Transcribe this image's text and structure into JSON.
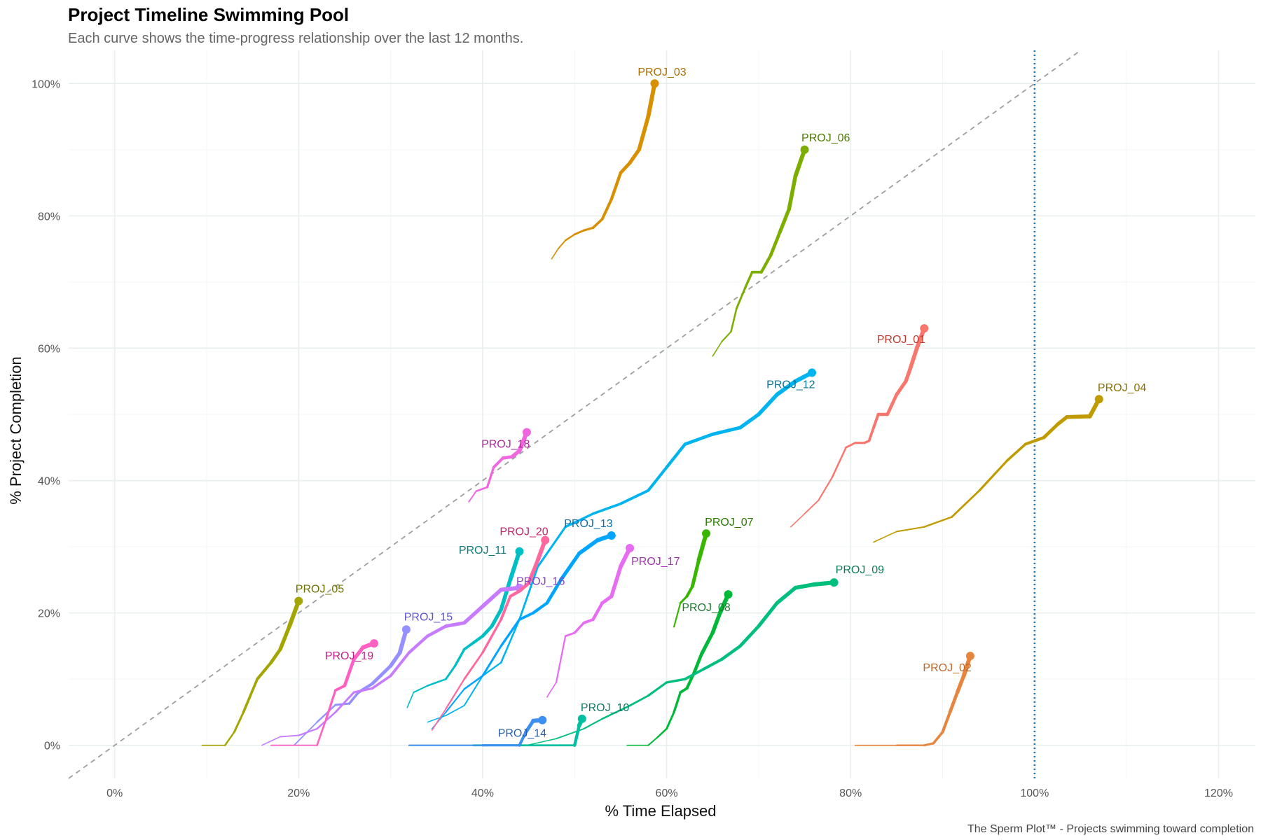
{
  "chart_data": {
    "type": "line",
    "title": "Project Timeline Swimming Pool",
    "subtitle": "Each curve shows the time-progress relationship over the last 12 months.",
    "caption": "The Sperm Plot™ - Projects swimming toward completion",
    "xlabel": "% Time Elapsed",
    "ylabel": "% Project Completion",
    "xlim": [
      -5,
      124
    ],
    "ylim": [
      -5,
      105
    ],
    "xticks": [
      0,
      20,
      40,
      60,
      80,
      100,
      120
    ],
    "xtick_labels": [
      "0%",
      "20%",
      "40%",
      "60%",
      "80%",
      "100%",
      "120%"
    ],
    "yticks": [
      0,
      20,
      40,
      60,
      80,
      100
    ],
    "ytick_labels": [
      "0%",
      "20%",
      "40%",
      "60%",
      "80%",
      "100%"
    ],
    "grid": true,
    "reference_line": {
      "type": "diagonal",
      "style": "dashed",
      "color": "#9e9e9e"
    },
    "deadline_line": {
      "x": 100,
      "style": "dotted",
      "color": "#1f77b4"
    },
    "series": [
      {
        "name": "PROJ_01",
        "color": "#F8766D",
        "label_color": "#C0392B",
        "points": [
          [
            73.5,
            33
          ],
          [
            75,
            35
          ],
          [
            76.5,
            37
          ],
          [
            78,
            40.5
          ],
          [
            79.5,
            45
          ],
          [
            80.5,
            45.7
          ],
          [
            81.5,
            45.7
          ],
          [
            82,
            46
          ],
          [
            82.5,
            48
          ],
          [
            83,
            50
          ],
          [
            84,
            50
          ],
          [
            85,
            53
          ],
          [
            86,
            55
          ],
          [
            86.5,
            57
          ],
          [
            87.2,
            60
          ],
          [
            88,
            63
          ]
        ]
      },
      {
        "name": "PROJ_02",
        "color": "#E7853E",
        "label_color": "#C0672A",
        "points": [
          [
            80.5,
            0
          ],
          [
            85,
            0
          ],
          [
            88,
            0
          ],
          [
            89,
            0.3
          ],
          [
            90,
            2
          ],
          [
            90.8,
            5
          ],
          [
            91.6,
            8
          ],
          [
            92.3,
            10.5
          ],
          [
            93,
            13.5
          ]
        ]
      },
      {
        "name": "PROJ_03",
        "color": "#D89000",
        "label_color": "#A86E00",
        "points": [
          [
            47.5,
            73.5
          ],
          [
            48.2,
            75
          ],
          [
            49,
            76.3
          ],
          [
            50,
            77.2
          ],
          [
            51,
            77.8
          ],
          [
            52,
            78.2
          ],
          [
            53,
            79.5
          ],
          [
            54,
            82.5
          ],
          [
            55,
            86.5
          ],
          [
            56,
            88
          ],
          [
            57,
            90
          ],
          [
            58,
            95
          ],
          [
            58.7,
            100
          ]
        ]
      },
      {
        "name": "PROJ_04",
        "color": "#C09B00",
        "label_color": "#8A6F00",
        "points": [
          [
            82.5,
            30.7
          ],
          [
            85,
            32.3
          ],
          [
            88,
            33
          ],
          [
            91,
            34.5
          ],
          [
            94,
            38.5
          ],
          [
            97,
            43
          ],
          [
            99,
            45.5
          ],
          [
            100,
            46
          ],
          [
            101,
            46.5
          ],
          [
            102.5,
            48.5
          ],
          [
            103.5,
            49.6
          ],
          [
            106,
            49.7
          ],
          [
            107,
            52.3
          ]
        ]
      },
      {
        "name": "PROJ_05",
        "color": "#A3A500",
        "label_color": "#6E7000",
        "points": [
          [
            9.5,
            0
          ],
          [
            12,
            0
          ],
          [
            13,
            2
          ],
          [
            14,
            5
          ],
          [
            15.5,
            10
          ],
          [
            17,
            12.5
          ],
          [
            18,
            14.5
          ],
          [
            19,
            18
          ],
          [
            20,
            21.8
          ]
        ]
      },
      {
        "name": "PROJ_06",
        "color": "#7CAE00",
        "label_color": "#4F7A00",
        "points": [
          [
            65,
            58.8
          ],
          [
            66,
            61
          ],
          [
            67,
            62.5
          ],
          [
            67.6,
            66
          ],
          [
            68.5,
            69
          ],
          [
            69.3,
            71.5
          ],
          [
            70.3,
            71.5
          ],
          [
            71.3,
            74
          ],
          [
            72.3,
            77.5
          ],
          [
            73.3,
            81
          ],
          [
            74,
            86
          ],
          [
            75,
            90
          ]
        ]
      },
      {
        "name": "PROJ_07",
        "color": "#39B600",
        "label_color": "#2A7A00",
        "points": [
          [
            60.8,
            17.9
          ],
          [
            61.5,
            21.5
          ],
          [
            62.2,
            22.5
          ],
          [
            62.8,
            24
          ],
          [
            63.5,
            28
          ],
          [
            64.3,
            32
          ]
        ]
      },
      {
        "name": "PROJ_08",
        "color": "#00B938",
        "label_color": "#1E7A30",
        "points": [
          [
            55.7,
            0
          ],
          [
            58,
            0
          ],
          [
            59,
            1.2
          ],
          [
            60,
            2.5
          ],
          [
            60.8,
            5
          ],
          [
            61.5,
            8
          ],
          [
            62.2,
            8.6
          ],
          [
            63,
            11
          ],
          [
            63.8,
            13.8
          ],
          [
            65,
            17
          ],
          [
            65.8,
            20
          ],
          [
            66.7,
            22.8
          ]
        ]
      },
      {
        "name": "PROJ_09",
        "color": "#00BF7D",
        "label_color": "#0F7A56",
        "points": [
          [
            44.8,
            0
          ],
          [
            48,
            1
          ],
          [
            51,
            2.5
          ],
          [
            53,
            4
          ],
          [
            56,
            6
          ],
          [
            58,
            7.5
          ],
          [
            60,
            9.5
          ],
          [
            62,
            10
          ],
          [
            64,
            11.5
          ],
          [
            66,
            13
          ],
          [
            68,
            15
          ],
          [
            70,
            18
          ],
          [
            72,
            21.5
          ],
          [
            74,
            23.8
          ],
          [
            76,
            24.3
          ],
          [
            78.2,
            24.6
          ]
        ]
      },
      {
        "name": "PROJ_10",
        "color": "#00BFA0",
        "label_color": "#0E7A6A",
        "points": [
          [
            39,
            0
          ],
          [
            50,
            0
          ],
          [
            50.5,
            3
          ],
          [
            50.8,
            4
          ]
        ]
      },
      {
        "name": "PROJ_11",
        "color": "#00BFC4",
        "label_color": "#0E7A7D",
        "points": [
          [
            31.8,
            5.7
          ],
          [
            32.5,
            8
          ],
          [
            34,
            9
          ],
          [
            36,
            10
          ],
          [
            37,
            12
          ],
          [
            38,
            14.5
          ],
          [
            39,
            15.5
          ],
          [
            40,
            16.5
          ],
          [
            41,
            18
          ],
          [
            42,
            20.5
          ],
          [
            43,
            25
          ],
          [
            44,
            29.3
          ]
        ]
      },
      {
        "name": "PROJ_12",
        "color": "#00B4EF",
        "label_color": "#0B7396",
        "points": [
          [
            34,
            3.5
          ],
          [
            36,
            4.5
          ],
          [
            38,
            6
          ],
          [
            40,
            10.5
          ],
          [
            42,
            12.5
          ],
          [
            44,
            19
          ],
          [
            46,
            27
          ],
          [
            49,
            33
          ],
          [
            52,
            35
          ],
          [
            55,
            36.5
          ],
          [
            58,
            38.5
          ],
          [
            60,
            42
          ],
          [
            62,
            45.5
          ],
          [
            65,
            47
          ],
          [
            68,
            48
          ],
          [
            70,
            50
          ],
          [
            72,
            53
          ],
          [
            74,
            55
          ],
          [
            75.8,
            56.3
          ]
        ]
      },
      {
        "name": "PROJ_13",
        "color": "#00A5FF",
        "label_color": "#0B6EA8",
        "points": [
          [
            34.5,
            2.5
          ],
          [
            36,
            5
          ],
          [
            38,
            8.5
          ],
          [
            40,
            10.5
          ],
          [
            42,
            15
          ],
          [
            44,
            19
          ],
          [
            45.5,
            20
          ],
          [
            47,
            21.5
          ],
          [
            48.5,
            25
          ],
          [
            50.5,
            29
          ],
          [
            52.5,
            31
          ],
          [
            54,
            31.7
          ]
        ]
      },
      {
        "name": "PROJ_14",
        "color": "#3D8FF0",
        "label_color": "#2A5FA8",
        "points": [
          [
            32,
            0
          ],
          [
            40,
            0
          ],
          [
            44,
            0
          ],
          [
            44.7,
            2
          ],
          [
            45.5,
            3.7
          ],
          [
            46.5,
            3.8
          ]
        ]
      },
      {
        "name": "PROJ_15",
        "color": "#9590FF",
        "label_color": "#5C55C8",
        "points": [
          [
            19.5,
            0
          ],
          [
            22,
            3.5
          ],
          [
            24,
            6.1
          ],
          [
            25.5,
            6.3
          ],
          [
            26.5,
            8
          ],
          [
            28,
            9.3
          ],
          [
            30,
            12
          ],
          [
            31,
            14
          ],
          [
            31.7,
            17.5
          ]
        ]
      },
      {
        "name": "PROJ_16",
        "color": "#C77CFF",
        "label_color": "#8A3FC4",
        "points": [
          [
            16,
            0
          ],
          [
            18,
            1.3
          ],
          [
            20,
            1.5
          ],
          [
            22,
            2.5
          ],
          [
            24,
            5
          ],
          [
            26,
            8
          ],
          [
            28,
            8.6
          ],
          [
            30,
            10.5
          ],
          [
            32,
            14
          ],
          [
            34,
            16.5
          ],
          [
            36,
            18
          ],
          [
            38,
            18.5
          ],
          [
            40,
            21
          ],
          [
            42,
            23.5
          ],
          [
            44,
            23.8
          ]
        ]
      },
      {
        "name": "PROJ_17",
        "color": "#E76BF3",
        "label_color": "#A32FB3",
        "points": [
          [
            47,
            7.3
          ],
          [
            48,
            9.5
          ],
          [
            49,
            16.5
          ],
          [
            50,
            17
          ],
          [
            51,
            18.5
          ],
          [
            52,
            19
          ],
          [
            53,
            21.5
          ],
          [
            54,
            22.5
          ],
          [
            55,
            27
          ],
          [
            56,
            29.8
          ]
        ]
      },
      {
        "name": "PROJ_18",
        "color": "#F066E0",
        "label_color": "#B0259E",
        "points": [
          [
            38.5,
            36.8
          ],
          [
            39.3,
            38.4
          ],
          [
            40.5,
            39
          ],
          [
            41.2,
            42
          ],
          [
            42.2,
            43.4
          ],
          [
            43.2,
            43.6
          ],
          [
            44,
            44.5
          ],
          [
            44.8,
            47.3
          ]
        ]
      },
      {
        "name": "PROJ_19",
        "color": "#FF61C3",
        "label_color": "#C21F84",
        "points": [
          [
            17,
            0
          ],
          [
            22,
            0
          ],
          [
            23,
            4
          ],
          [
            24,
            8.3
          ],
          [
            25,
            9
          ],
          [
            26,
            13
          ],
          [
            27,
            14.8
          ],
          [
            28.2,
            15.4
          ]
        ]
      },
      {
        "name": "PROJ_20",
        "color": "#FF689F",
        "label_color": "#C4256A",
        "points": [
          [
            34.5,
            2.3
          ],
          [
            36,
            5.5
          ],
          [
            38,
            10
          ],
          [
            40,
            14
          ],
          [
            42,
            19
          ],
          [
            43,
            22.5
          ],
          [
            44,
            23.3
          ],
          [
            45,
            24.5
          ],
          [
            46,
            28
          ],
          [
            46.8,
            31
          ]
        ]
      }
    ],
    "labels": [
      {
        "text": "PROJ_01",
        "x": 85.5,
        "y": 61.3
      },
      {
        "text": "PROJ_02",
        "x": 90.5,
        "y": 11.7
      },
      {
        "text": "PROJ_03",
        "x": 59.5,
        "y": 101.7
      },
      {
        "text": "PROJ_04",
        "x": 109.5,
        "y": 54
      },
      {
        "text": "PROJ_05",
        "x": 22.3,
        "y": 23.6
      },
      {
        "text": "PROJ_06",
        "x": 77.3,
        "y": 91.8
      },
      {
        "text": "PROJ_07",
        "x": 66.8,
        "y": 33.7
      },
      {
        "text": "PROJ_08",
        "x": 64.3,
        "y": 20.8
      },
      {
        "text": "PROJ_09",
        "x": 81,
        "y": 26.5
      },
      {
        "text": "PROJ_10",
        "x": 53.3,
        "y": 5.7
      },
      {
        "text": "PROJ_11",
        "x": 40,
        "y": 29.5
      },
      {
        "text": "PROJ_12",
        "x": 73.5,
        "y": 54.5
      },
      {
        "text": "PROJ_13",
        "x": 51.5,
        "y": 33.5
      },
      {
        "text": "PROJ_14",
        "x": 44.3,
        "y": 1.8
      },
      {
        "text": "PROJ_15",
        "x": 34.1,
        "y": 19.4
      },
      {
        "text": "PROJ_16",
        "x": 46.3,
        "y": 24.8
      },
      {
        "text": "PROJ_17",
        "x": 58.8,
        "y": 27.8
      },
      {
        "text": "PROJ_18",
        "x": 42.5,
        "y": 45.5
      },
      {
        "text": "PROJ_19",
        "x": 25.5,
        "y": 13.5
      },
      {
        "text": "PROJ_20",
        "x": 44.5,
        "y": 32.3
      }
    ]
  }
}
